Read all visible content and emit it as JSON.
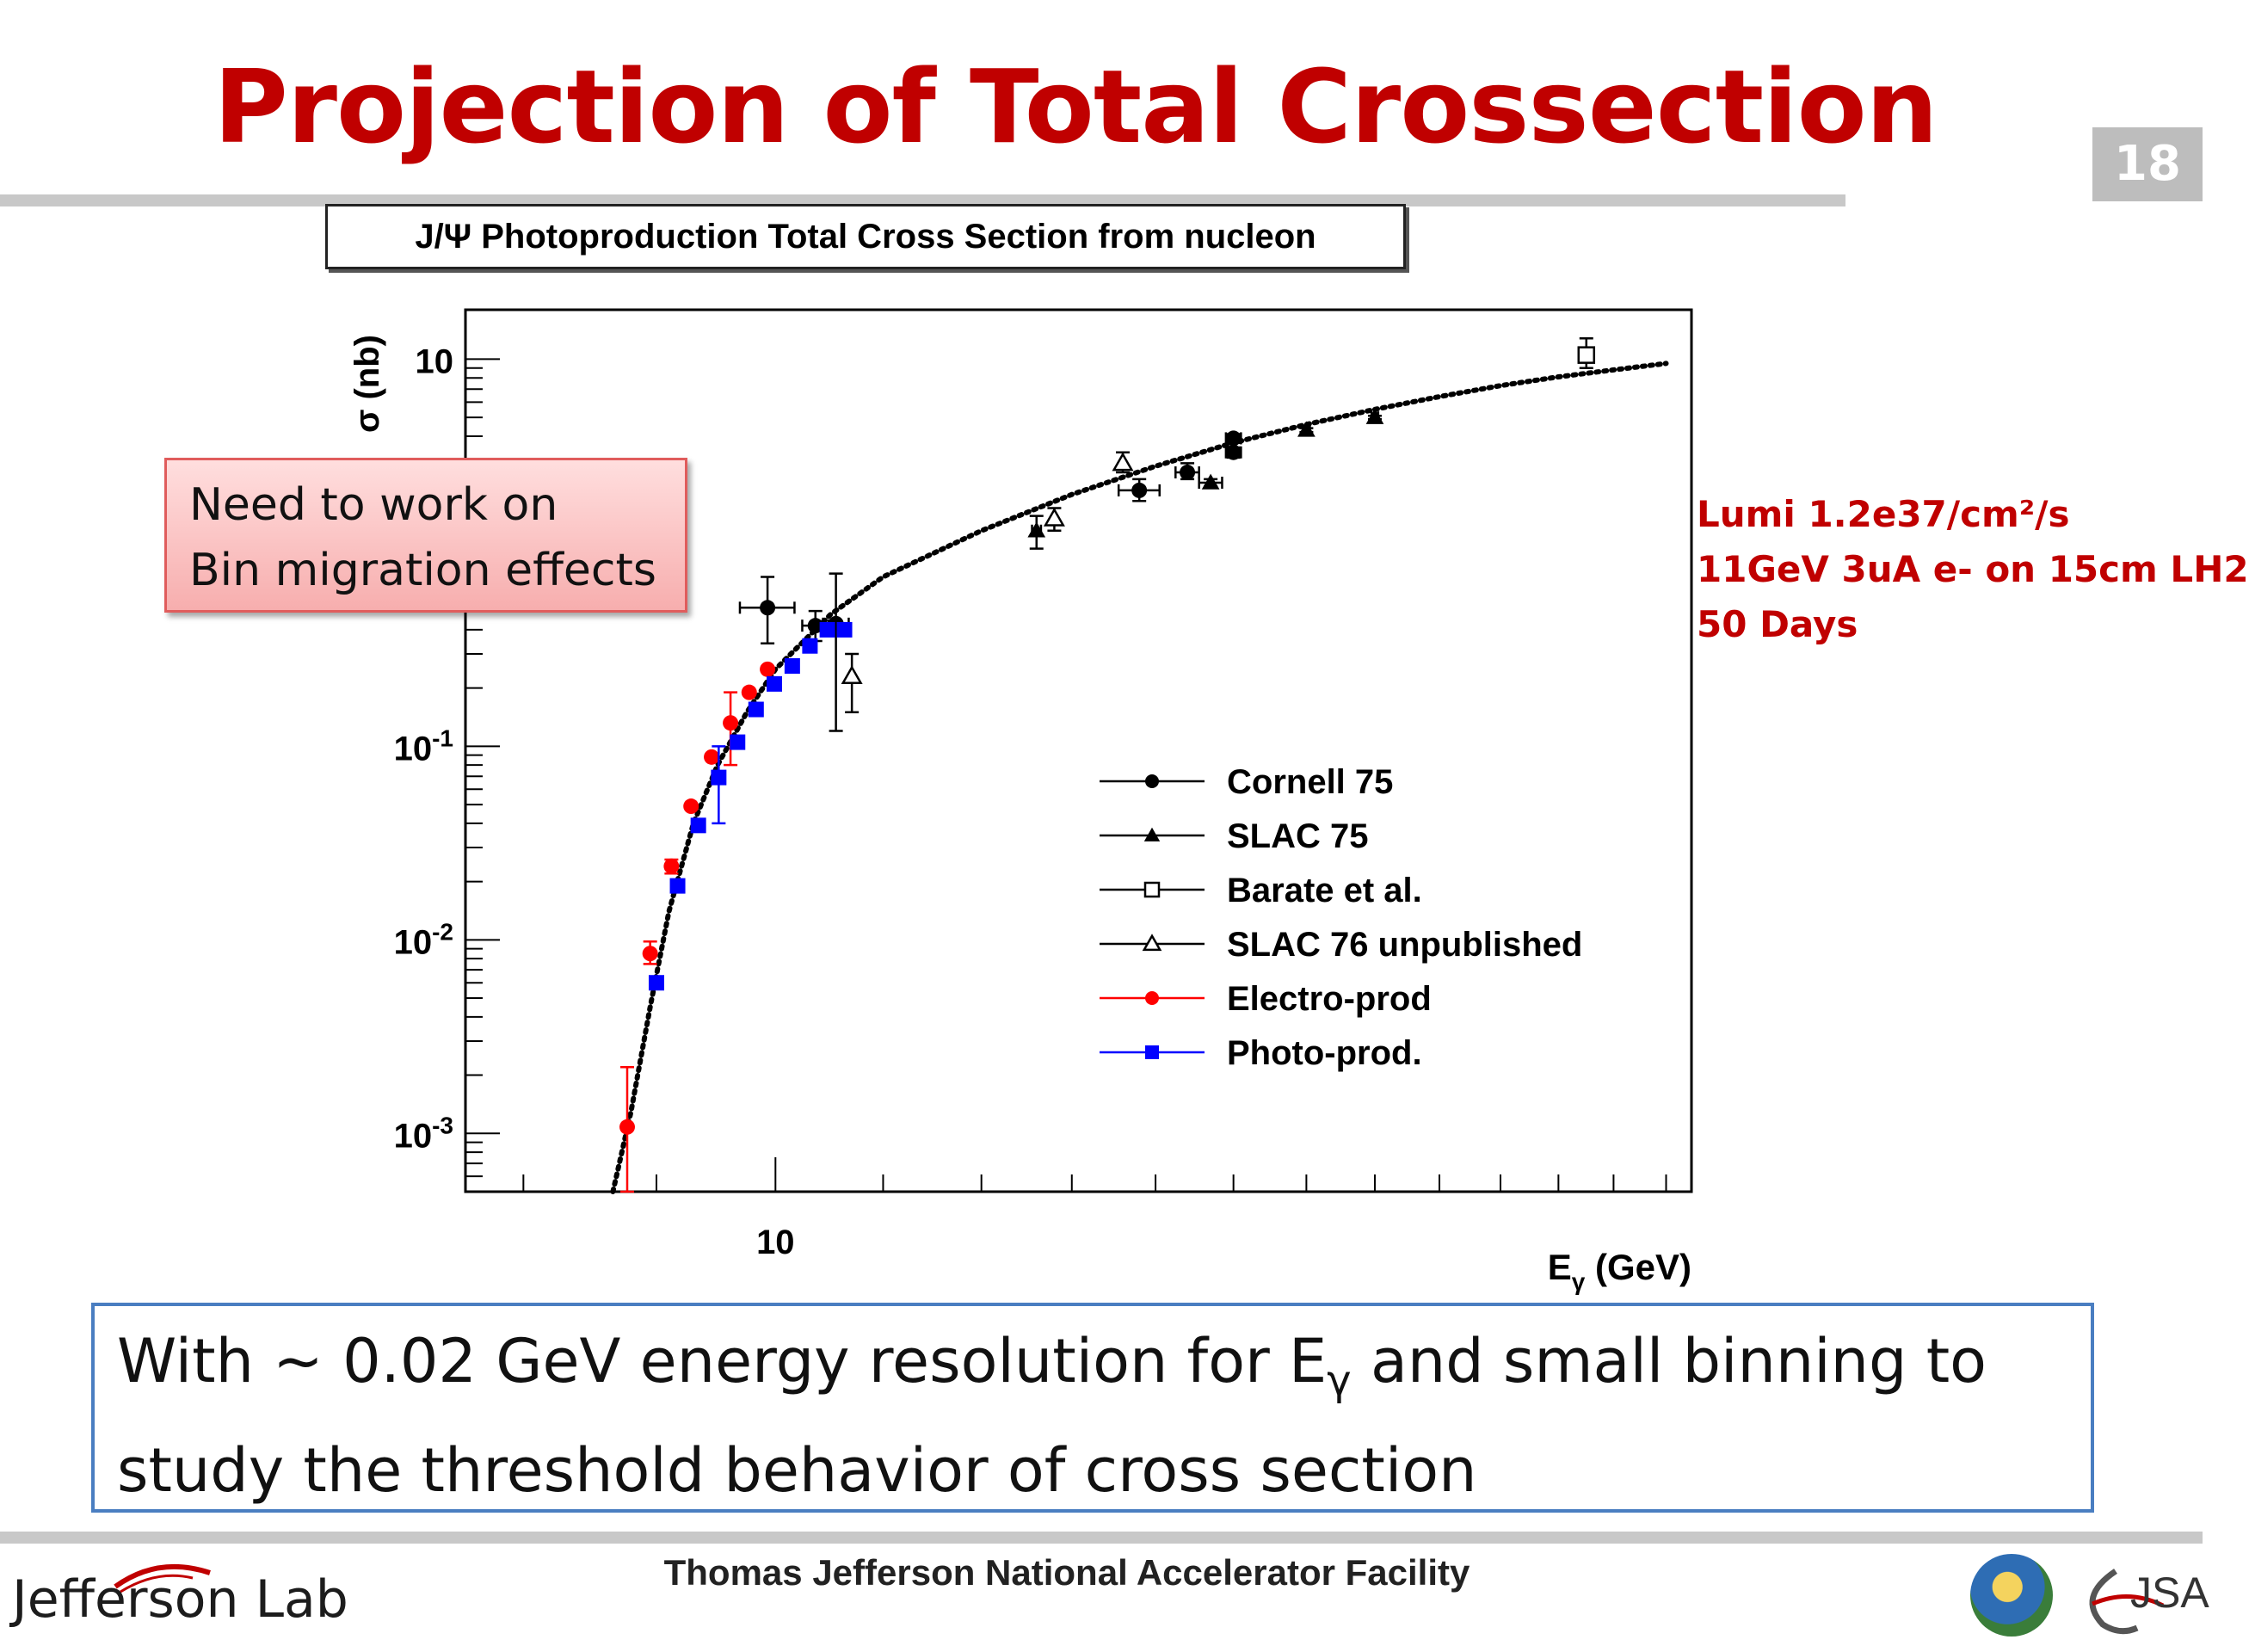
{
  "slide": {
    "title": "Projection of Total Crossection",
    "page_number": "18",
    "chart_box_title": "J/Ψ Photoproduction Total Cross Section from nucleon",
    "callout_lines": [
      "Need to work on",
      "Bin migration effects"
    ],
    "lumi_lines": [
      "Lumi 1.2e37/cm²/s",
      "11GeV 3uA e- on 15cm LH2",
      "50 Days"
    ],
    "note_line1_before": "With ~ 0.02 GeV energy resolution for E",
    "note_line1_sub": "γ",
    "note_line1_after": " and small binning to",
    "note_line2": "study the threshold behavior of cross section",
    "footer_org": "Thomas Jefferson National Accelerator Facility",
    "logo_text": "Jefferson Lab",
    "jsa_text": "JSA"
  },
  "chart_data": {
    "type": "scatter",
    "ylabel": "σ (nb)",
    "xlabel": "E",
    "xlabel_sub": "γ",
    "xlabel_unit": " (GeV)",
    "x_scale": "log",
    "y_scale": "log",
    "xlim": [
      7.6,
      22.5
    ],
    "ylim": [
      0.0005,
      18
    ],
    "y_tick_labels": [
      {
        "value": 10,
        "base": "10",
        "exp": ""
      },
      {
        "value": 0.1,
        "base": "10",
        "exp": "-1"
      },
      {
        "value": 0.01,
        "base": "10",
        "exp": "-2"
      },
      {
        "value": 0.001,
        "base": "10",
        "exp": "-3"
      }
    ],
    "x_tick_labels": [
      {
        "value": 10,
        "label": "10"
      }
    ],
    "legend": [
      {
        "name": "Cornell 75",
        "marker": "circle",
        "color": "#000000"
      },
      {
        "name": "SLAC 75",
        "marker": "triangle",
        "color": "#000000"
      },
      {
        "name": "Barate et al.",
        "marker": "open-square",
        "color": "#000000"
      },
      {
        "name": "SLAC 76 unpublished",
        "marker": "open-triangle",
        "color": "#000000"
      },
      {
        "name": "Electro-prod",
        "marker": "circle",
        "color": "#ff0000"
      },
      {
        "name": "Photo-prod.",
        "marker": "square",
        "color": "#0000ff"
      }
    ],
    "series": [
      {
        "name": "Cornell 75",
        "marker": "circle",
        "color": "#000000",
        "points": [
          {
            "x": 9.93,
            "y": 0.52,
            "xerr": 0.24,
            "ylo": 0.34,
            "yhi": 0.75
          },
          {
            "x": 10.36,
            "y": 0.42,
            "xerr": 0.12,
            "ylo": 0.35,
            "yhi": 0.5
          },
          {
            "x": 10.55,
            "y": 0.43,
            "xerr": 0.12,
            "ylo": 0.12,
            "yhi": 0.78
          },
          {
            "x": 13.8,
            "y": 2.1,
            "xerr": 0.25,
            "ylo": 1.85,
            "yhi": 2.4
          },
          {
            "x": 14.4,
            "y": 2.6,
            "xerr": 0.15,
            "ylo": 2.4,
            "yhi": 2.9
          },
          {
            "x": 15.0,
            "y": 3.3,
            "xerr": 0.1,
            "ylo": 3.1,
            "yhi": 3.5
          },
          {
            "x": 15.0,
            "y": 3.9,
            "xerr": 0.1,
            "ylo": 3.75,
            "yhi": 4.1
          }
        ]
      },
      {
        "name": "SLAC 75",
        "marker": "triangle",
        "color": "#000000",
        "points": [
          {
            "x": 12.6,
            "y": 1.3,
            "xerr": 0.05,
            "ylo": 1.05,
            "yhi": 1.55
          },
          {
            "x": 14.7,
            "y": 2.3,
            "xerr": 0.15,
            "ylo": 2.2,
            "yhi": 2.4
          },
          {
            "x": 16.0,
            "y": 4.3,
            "xerr": 0.05,
            "ylo": 4.2,
            "yhi": 4.4
          },
          {
            "x": 17.0,
            "y": 5.0,
            "xerr": 0.05,
            "ylo": 4.9,
            "yhi": 5.1
          }
        ]
      },
      {
        "name": "Barate et al.",
        "marker": "open-square",
        "color": "#000000",
        "points": [
          {
            "x": 20.5,
            "y": 10.5,
            "xerr": 0.0,
            "ylo": 9.0,
            "yhi": 12.8
          }
        ]
      },
      {
        "name": "SLAC 76 unpublished",
        "marker": "open-triangle",
        "color": "#000000",
        "points": [
          {
            "x": 10.7,
            "y": 0.23,
            "xerr": 0.0,
            "ylo": 0.15,
            "yhi": 0.3
          },
          {
            "x": 12.8,
            "y": 1.5,
            "xerr": 0.0,
            "ylo": 1.3,
            "yhi": 1.7
          },
          {
            "x": 13.6,
            "y": 2.9,
            "xerr": 0.0,
            "ylo": 2.6,
            "yhi": 3.3
          }
        ]
      },
      {
        "name": "Electro-prod",
        "marker": "circle",
        "color": "#ff0000",
        "points": [
          {
            "x": 8.77,
            "y": 0.00108,
            "ylo": 0.0005,
            "yhi": 0.0022
          },
          {
            "x": 8.95,
            "y": 0.0085,
            "ylo": 0.0075,
            "yhi": 0.0098
          },
          {
            "x": 9.12,
            "y": 0.024,
            "ylo": 0.022,
            "yhi": 0.026
          },
          {
            "x": 9.28,
            "y": 0.049
          },
          {
            "x": 9.45,
            "y": 0.088
          },
          {
            "x": 9.61,
            "y": 0.132,
            "ylo": 0.08,
            "yhi": 0.19
          },
          {
            "x": 9.77,
            "y": 0.19
          },
          {
            "x": 9.93,
            "y": 0.25
          }
        ]
      },
      {
        "name": "Photo-prod.",
        "marker": "square",
        "color": "#0000ff",
        "points": [
          {
            "x": 9.0,
            "y": 0.006
          },
          {
            "x": 9.17,
            "y": 0.019
          },
          {
            "x": 9.34,
            "y": 0.039
          },
          {
            "x": 9.51,
            "y": 0.069,
            "ylo": 0.04,
            "yhi": 0.1
          },
          {
            "x": 9.67,
            "y": 0.105
          },
          {
            "x": 9.83,
            "y": 0.155
          },
          {
            "x": 9.99,
            "y": 0.21
          },
          {
            "x": 10.15,
            "y": 0.26
          },
          {
            "x": 10.31,
            "y": 0.33
          },
          {
            "x": 10.47,
            "y": 0.4
          },
          {
            "x": 10.63,
            "y": 0.4
          }
        ]
      }
    ],
    "fit_curve": [
      {
        "x": 8.66,
        "y": 0.0005
      },
      {
        "x": 8.8,
        "y": 0.0013
      },
      {
        "x": 8.95,
        "y": 0.0045
      },
      {
        "x": 9.1,
        "y": 0.014
      },
      {
        "x": 9.3,
        "y": 0.04
      },
      {
        "x": 9.5,
        "y": 0.08
      },
      {
        "x": 9.75,
        "y": 0.15
      },
      {
        "x": 10.0,
        "y": 0.25
      },
      {
        "x": 10.5,
        "y": 0.48
      },
      {
        "x": 11.0,
        "y": 0.75
      },
      {
        "x": 12.0,
        "y": 1.3
      },
      {
        "x": 13.0,
        "y": 2.0
      },
      {
        "x": 14.0,
        "y": 2.8
      },
      {
        "x": 15.0,
        "y": 3.7
      },
      {
        "x": 16.0,
        "y": 4.6
      },
      {
        "x": 17.0,
        "y": 5.5
      },
      {
        "x": 18.0,
        "y": 6.4
      },
      {
        "x": 19.0,
        "y": 7.3
      },
      {
        "x": 20.0,
        "y": 8.1
      },
      {
        "x": 21.0,
        "y": 8.8
      },
      {
        "x": 22.0,
        "y": 9.5
      }
    ]
  }
}
